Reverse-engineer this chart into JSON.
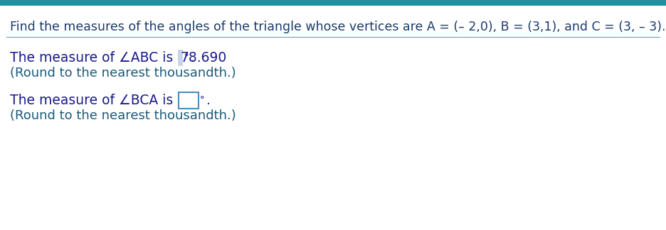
{
  "title_text": "Find the measures of the angles of the triangle whose vertices are A = (– 2,0), B = (3,1), and C = (3, – 3).",
  "title_color": "#1a3a6b",
  "title_fontsize": 12.5,
  "body_color": "#1a1a8c",
  "body_fontsize": 13.5,
  "round_color": "#1a5a7a",
  "highlight_color": "#c8d4e8",
  "highlight_border_color": "#4a90c0",
  "background_color": "#ffffff",
  "separator_color": "#5aabab",
  "top_bar_color": "#2090a0",
  "block1_prefix": "The measure of ∠ABC is ",
  "block1_value": "78.690",
  "block1_suffix": "°.",
  "block1_round": "(Round to the nearest thousandth.)",
  "block2_prefix": "The measure of ∠BCA is ",
  "block2_suffix": "°.",
  "block2_round": "(Round to the nearest thousandth.)"
}
